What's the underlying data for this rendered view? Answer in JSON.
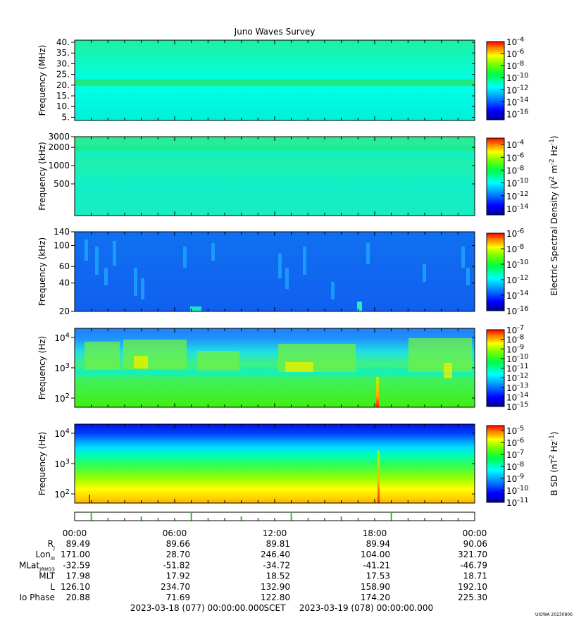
{
  "chart_data": {
    "type": "heatmap",
    "title": "Juno Waves Survey",
    "panels": [
      {
        "ylabel": "Frequency (MHz)",
        "y_scale": "linear",
        "ylim": [
          3.5,
          41
        ],
        "y_ticks": [
          {
            "v": 5,
            "label": "5."
          },
          {
            "v": 10,
            "label": "10."
          },
          {
            "v": 15,
            "label": "15."
          },
          {
            "v": 20,
            "label": "20."
          },
          {
            "v": 25,
            "label": "25."
          },
          {
            "v": 30,
            "label": "30."
          },
          {
            "v": 35,
            "label": "35."
          },
          {
            "v": 40,
            "label": "40."
          }
        ],
        "colorbar_ticks": [
          {
            "base": "10",
            "exp": "-4"
          },
          {
            "base": "10",
            "exp": "-6"
          },
          {
            "base": "10",
            "exp": "-8"
          },
          {
            "base": "10",
            "exp": "-10"
          },
          {
            "base": "10",
            "exp": "-12"
          },
          {
            "base": "10",
            "exp": "-14"
          },
          {
            "base": "10",
            "exp": "-16"
          }
        ],
        "colorbar_range_exp": [
          -4,
          -17
        ]
      },
      {
        "ylabel": "Frequency (kHz)",
        "y_scale": "log",
        "ylim": [
          150,
          3000
        ],
        "y_ticks": [
          {
            "v": 3000,
            "label": "3000"
          },
          {
            "v": 2000,
            "label": "2000"
          },
          {
            "v": 1000,
            "label": "1000"
          },
          {
            "v": 500,
            "label": "500"
          }
        ],
        "colorbar_ticks": [
          {
            "base": "10",
            "exp": "-4"
          },
          {
            "base": "10",
            "exp": "-6"
          },
          {
            "base": "10",
            "exp": "-8"
          },
          {
            "base": "10",
            "exp": "-10"
          },
          {
            "base": "10",
            "exp": "-12"
          },
          {
            "base": "10",
            "exp": "-14"
          }
        ],
        "colorbar_range_exp": [
          -3,
          -15
        ]
      },
      {
        "ylabel": "Frequency (kHz)",
        "y_scale": "log",
        "ylim": [
          20,
          140
        ],
        "y_ticks": [
          {
            "v": 140,
            "label": "140"
          },
          {
            "v": 100,
            "label": "100"
          },
          {
            "v": 60,
            "label": "60"
          },
          {
            "v": 40,
            "label": "40"
          },
          {
            "v": 20,
            "label": "20"
          }
        ],
        "colorbar_ticks": [
          {
            "base": "10",
            "exp": "-6"
          },
          {
            "base": "10",
            "exp": "-8"
          },
          {
            "base": "10",
            "exp": "-10"
          },
          {
            "base": "10",
            "exp": "-12"
          },
          {
            "base": "10",
            "exp": "-14"
          },
          {
            "base": "10",
            "exp": "-16"
          }
        ],
        "colorbar_range_exp": [
          -6,
          -16
        ]
      },
      {
        "ylabel": "Frequency (Hz)",
        "y_scale": "log",
        "ylim": [
          50,
          20000
        ],
        "y_ticks": [
          {
            "v": 10000,
            "base": "10",
            "exp": "4"
          },
          {
            "v": 1000,
            "base": "10",
            "exp": "3"
          },
          {
            "v": 100,
            "base": "10",
            "exp": "2"
          }
        ],
        "colorbar_ticks": [
          {
            "base": "10",
            "exp": "-7"
          },
          {
            "base": "10",
            "exp": "-8"
          },
          {
            "base": "10",
            "exp": "-9"
          },
          {
            "base": "10",
            "exp": "-10"
          },
          {
            "base": "10",
            "exp": "-11"
          },
          {
            "base": "10",
            "exp": "-12"
          },
          {
            "base": "10",
            "exp": "-13"
          },
          {
            "base": "10",
            "exp": "-14"
          },
          {
            "base": "10",
            "exp": "-15"
          }
        ],
        "colorbar_range_exp": [
          -7,
          -15
        ]
      },
      {
        "ylabel": "Frequency (Hz)",
        "y_scale": "log",
        "ylim": [
          50,
          20000
        ],
        "y_ticks": [
          {
            "v": 10000,
            "base": "10",
            "exp": "4"
          },
          {
            "v": 1000,
            "base": "10",
            "exp": "3"
          },
          {
            "v": 100,
            "base": "10",
            "exp": "2"
          }
        ],
        "colorbar_ticks": [
          {
            "base": "10",
            "exp": "-5"
          },
          {
            "base": "10",
            "exp": "-6"
          },
          {
            "base": "10",
            "exp": "-7"
          },
          {
            "base": "10",
            "exp": "-8"
          },
          {
            "base": "10",
            "exp": "-9"
          },
          {
            "base": "10",
            "exp": "-10"
          },
          {
            "base": "10",
            "exp": "-11"
          }
        ],
        "colorbar_range_exp": [
          -4.6,
          -11
        ]
      }
    ],
    "colorbar_label_e": "Electric Spectral Density (V",
    "colorbar_label_e_units": {
      "sup1": "2",
      "mid": " m",
      "sup2": "-2",
      "mid2": " Hz",
      "sup3": "-1",
      "end": ")"
    },
    "colorbar_label_b": "B SD (nT",
    "colorbar_label_b_units": {
      "sup1": "2",
      "mid": " Hz",
      "sup2": "-1",
      "end": ")"
    },
    "x_ticks": [
      "00:00",
      "06:00",
      "12:00",
      "18:00",
      "00:00"
    ],
    "ephemeris": [
      {
        "label": "R",
        "sub": "J",
        "values": [
          "89.49",
          "89.66",
          "89.81",
          "89.94",
          "90.06"
        ]
      },
      {
        "label": "Lon",
        "sub": "III",
        "values": [
          "171.00",
          "28.70",
          "246.40",
          "104.00",
          "321.70"
        ]
      },
      {
        "label": "MLat",
        "sub": "JRM33",
        "values": [
          "-32.59",
          "-51.82",
          "-34.72",
          "-41.21",
          "-46.79"
        ]
      },
      {
        "label": "MLT",
        "sub": "",
        "values": [
          "17.98",
          "17.92",
          "18.52",
          "17.53",
          "18.71"
        ]
      },
      {
        "label": "L",
        "sub": "",
        "values": [
          "126.10",
          "234.70",
          "132.90",
          "158.90",
          "192.10"
        ]
      },
      {
        "label": "Io Phase",
        "sub": "",
        "values": [
          "20.88",
          "71.69",
          "122.80",
          "174.20",
          "225.30"
        ]
      }
    ],
    "time_range": {
      "start": "2023-03-18 (077) 00:00:00.000",
      "label": "SCET",
      "end": "2023-03-19 (078) 00:00:00.000"
    },
    "stamp": "UIOWA 20230806"
  }
}
